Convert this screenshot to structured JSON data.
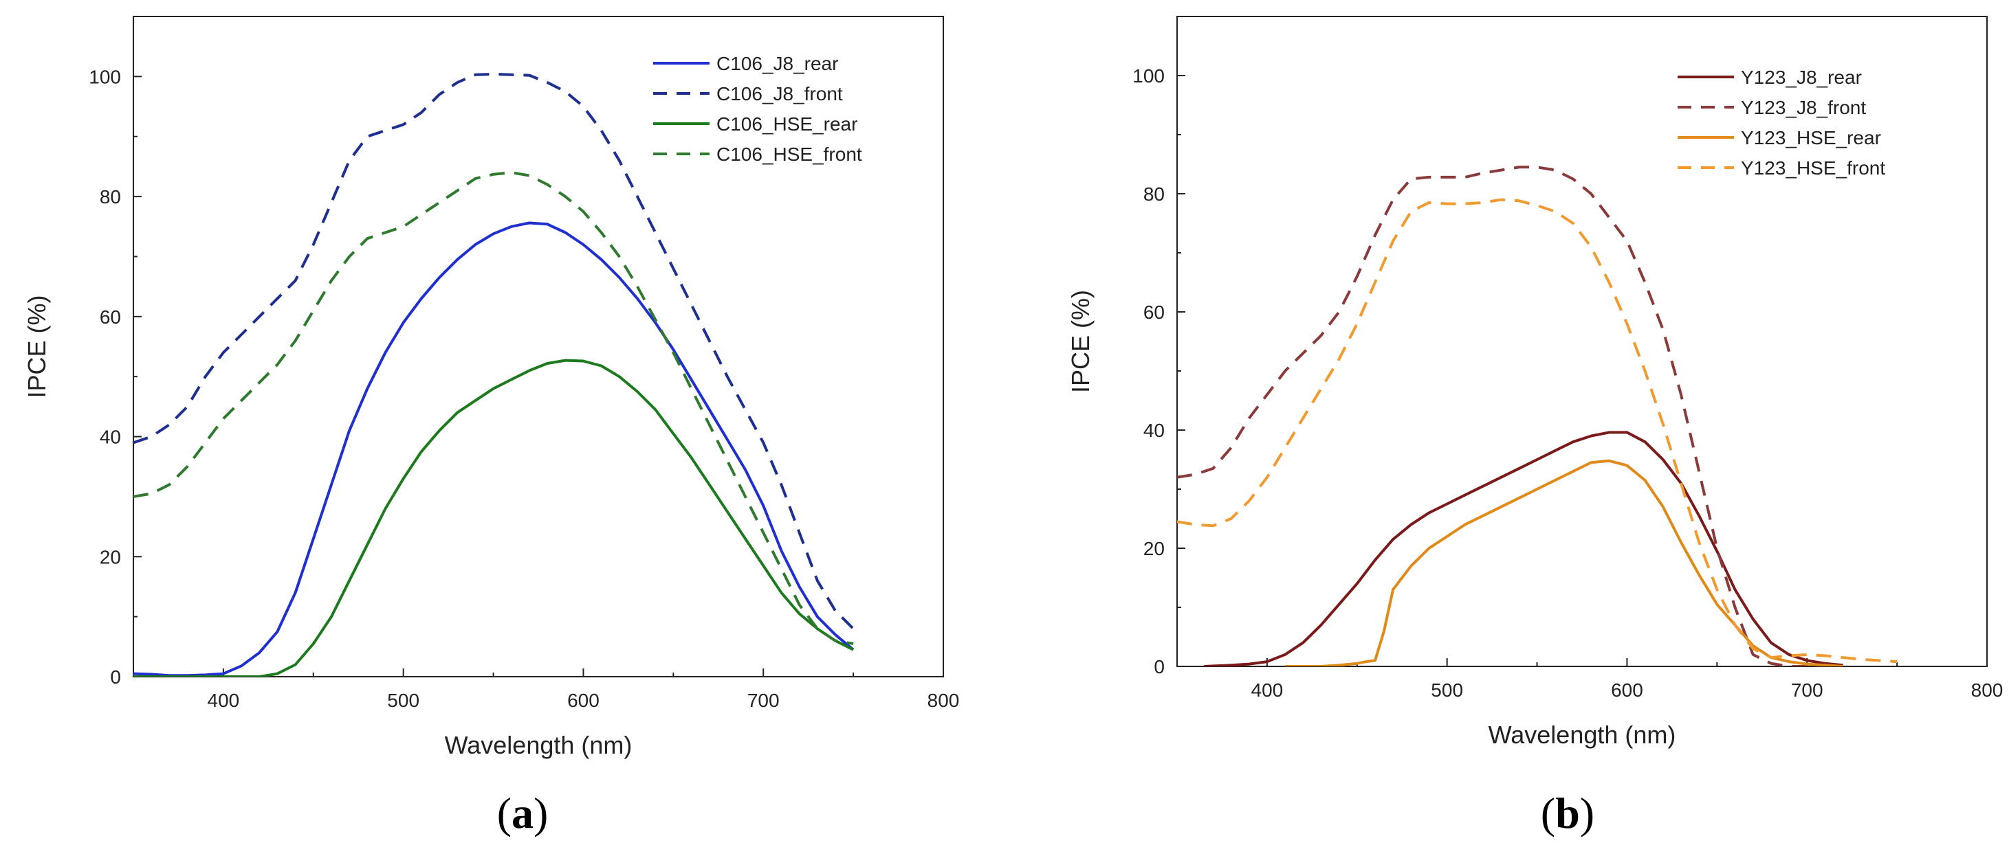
{
  "chart_data": [
    {
      "type": "line",
      "panel": "a",
      "panel_label": "a",
      "title": "",
      "xlabel": "Wavelength (nm)",
      "ylabel": "IPCE (%)",
      "xlim": [
        350,
        800
      ],
      "ylim": [
        0,
        110
      ],
      "xticks": [
        400,
        500,
        600,
        700,
        800
      ],
      "yticks": [
        0,
        20,
        40,
        60,
        80,
        100
      ],
      "legend_position": "top-right",
      "series": [
        {
          "name": "C106_J8_rear",
          "color": "#1f2fd0",
          "style": "solid",
          "x": [
            350,
            360,
            370,
            380,
            390,
            400,
            410,
            420,
            430,
            440,
            450,
            460,
            470,
            480,
            490,
            500,
            510,
            520,
            530,
            540,
            550,
            560,
            570,
            580,
            590,
            600,
            610,
            620,
            630,
            640,
            650,
            660,
            670,
            680,
            690,
            700,
            710,
            720,
            730,
            740,
            750
          ],
          "y": [
            0.5,
            0.4,
            0.2,
            0.2,
            0.3,
            0.5,
            1.8,
            4,
            7.5,
            14,
            23,
            32,
            41,
            48,
            54,
            59,
            63,
            66.5,
            69.5,
            72,
            73.8,
            75,
            75.6,
            75.4,
            74,
            72,
            69.5,
            66.5,
            63,
            59,
            54.5,
            49.5,
            44.5,
            39.5,
            34.5,
            28.5,
            21,
            15,
            10,
            7,
            4.5
          ]
        },
        {
          "name": "C106_J8_front",
          "color": "#1f2f90",
          "style": "dashed",
          "x": [
            350,
            360,
            370,
            380,
            390,
            400,
            410,
            420,
            430,
            440,
            450,
            460,
            470,
            480,
            490,
            500,
            510,
            520,
            530,
            540,
            550,
            560,
            570,
            580,
            590,
            600,
            610,
            620,
            630,
            640,
            650,
            660,
            670,
            680,
            690,
            700,
            710,
            720,
            730,
            740,
            750
          ],
          "y": [
            39,
            40,
            42,
            45,
            50,
            54,
            57,
            60,
            63,
            66,
            72,
            79,
            86,
            90,
            91,
            92,
            94,
            97,
            99,
            100.3,
            100.4,
            100.3,
            100.2,
            99,
            97.5,
            95,
            91,
            86,
            80,
            74,
            68,
            62,
            56,
            50,
            44.5,
            39,
            32,
            24,
            16,
            11,
            8
          ]
        },
        {
          "name": "C106_HSE_rear",
          "color": "#1e7a1e",
          "style": "solid",
          "x": [
            350,
            360,
            370,
            380,
            390,
            400,
            410,
            420,
            430,
            440,
            450,
            460,
            470,
            480,
            490,
            500,
            510,
            520,
            530,
            540,
            550,
            560,
            570,
            580,
            590,
            600,
            610,
            620,
            630,
            640,
            650,
            660,
            670,
            680,
            690,
            700,
            710,
            720,
            730,
            740,
            750
          ],
          "y": [
            0,
            0,
            0,
            0,
            0,
            0,
            0,
            0,
            0.5,
            2,
            5.5,
            10,
            16,
            22,
            28,
            33,
            37.5,
            41,
            44,
            46,
            48,
            49.5,
            51,
            52.2,
            52.7,
            52.6,
            51.8,
            50,
            47.5,
            44.5,
            40.5,
            36.5,
            32,
            27.5,
            23,
            18.5,
            14,
            10.5,
            8,
            6,
            4.5
          ]
        },
        {
          "name": "C106_HSE_front",
          "color": "#2f7a2f",
          "style": "dashed",
          "x": [
            350,
            360,
            370,
            380,
            390,
            400,
            410,
            420,
            430,
            440,
            450,
            460,
            470,
            480,
            490,
            500,
            510,
            520,
            530,
            540,
            550,
            560,
            570,
            580,
            590,
            600,
            610,
            620,
            630,
            640,
            650,
            660,
            670,
            680,
            690,
            700,
            710,
            720,
            730,
            740,
            750
          ],
          "y": [
            30,
            30.5,
            32,
            35,
            39,
            43,
            46,
            49,
            52,
            56,
            61,
            66,
            70,
            73,
            74,
            75,
            77,
            79,
            81,
            83,
            83.7,
            84,
            83.5,
            82,
            80,
            77.5,
            74,
            70,
            65,
            59.5,
            54,
            48,
            42,
            36,
            30,
            24,
            18,
            12,
            8,
            6,
            5.5
          ]
        }
      ]
    },
    {
      "type": "line",
      "panel": "b",
      "panel_label": "b",
      "title": "",
      "xlabel": "Wavelength (nm)",
      "ylabel": "IPCE (%)",
      "xlim": [
        350,
        800
      ],
      "ylim": [
        0,
        110
      ],
      "xticks": [
        400,
        500,
        600,
        700,
        800
      ],
      "yticks": [
        0,
        20,
        40,
        60,
        80,
        100
      ],
      "legend_position": "top-right",
      "series": [
        {
          "name": "Y123_J8_rear",
          "color": "#7a1a1a",
          "style": "solid",
          "x": [
            365,
            380,
            390,
            400,
            410,
            420,
            430,
            440,
            450,
            460,
            470,
            480,
            490,
            500,
            510,
            520,
            530,
            540,
            550,
            560,
            570,
            580,
            590,
            600,
            610,
            620,
            630,
            640,
            650,
            660,
            670,
            680,
            690,
            700,
            710,
            720
          ],
          "y": [
            0,
            0.2,
            0.4,
            0.8,
            2,
            4,
            7,
            10.5,
            14,
            18,
            21.5,
            24,
            26,
            27.5,
            29,
            30.5,
            32,
            33.5,
            35,
            36.5,
            38,
            39,
            39.6,
            39.6,
            38,
            35,
            31,
            25.5,
            19.5,
            13,
            8,
            4,
            2,
            1,
            0.5,
            0.2
          ]
        },
        {
          "name": "Y123_J8_front",
          "color": "#8a3a3a",
          "style": "dashed",
          "x": [
            350,
            360,
            370,
            380,
            390,
            400,
            410,
            420,
            430,
            440,
            450,
            460,
            470,
            480,
            490,
            500,
            510,
            520,
            530,
            540,
            550,
            560,
            570,
            580,
            590,
            600,
            610,
            620,
            630,
            640,
            650,
            660,
            670,
            680,
            690,
            700
          ],
          "y": [
            32,
            32.5,
            33.5,
            37,
            42,
            46,
            50,
            53,
            56,
            60,
            66,
            73,
            79,
            82.5,
            82.8,
            82.8,
            82.8,
            83.5,
            84,
            84.5,
            84.5,
            84,
            82.5,
            80,
            76,
            72,
            65,
            57,
            46,
            33,
            20,
            10,
            2,
            0.5,
            0,
            0
          ]
        },
        {
          "name": "Y123_HSE_rear",
          "color": "#e08a1a",
          "style": "solid",
          "x": [
            410,
            420,
            430,
            440,
            450,
            455,
            460,
            465,
            470,
            475,
            480,
            490,
            500,
            510,
            520,
            530,
            540,
            550,
            560,
            570,
            580,
            590,
            600,
            610,
            620,
            630,
            640,
            650,
            660,
            670,
            680,
            690,
            700,
            710,
            720
          ],
          "y": [
            0,
            0,
            0,
            0.2,
            0.5,
            0.8,
            1,
            6,
            13,
            15,
            17,
            20,
            22,
            24,
            25.5,
            27,
            28.5,
            30,
            31.5,
            33,
            34.5,
            34.8,
            34,
            31.5,
            27,
            21,
            15.5,
            10.5,
            7,
            3.5,
            1.5,
            0.8,
            0.4,
            0.2,
            0
          ]
        },
        {
          "name": "Y123_HSE_front",
          "color": "#f09a30",
          "style": "dashed",
          "x": [
            350,
            360,
            370,
            380,
            390,
            400,
            410,
            420,
            430,
            440,
            450,
            460,
            470,
            480,
            490,
            500,
            510,
            520,
            530,
            540,
            550,
            560,
            570,
            580,
            590,
            600,
            610,
            620,
            630,
            640,
            650,
            660,
            670,
            680,
            690,
            700,
            710,
            720,
            730,
            740,
            750
          ],
          "y": [
            24.5,
            24,
            23.8,
            25,
            28,
            32,
            37,
            42,
            47,
            52,
            58,
            65,
            72,
            77,
            78.5,
            78.3,
            78.3,
            78.5,
            79,
            78.8,
            78,
            77,
            75,
            71,
            65,
            58,
            50,
            41,
            31,
            21,
            13,
            7,
            3,
            1.5,
            1.8,
            2,
            1.8,
            1.5,
            1.2,
            1,
            0.8
          ]
        }
      ]
    }
  ]
}
